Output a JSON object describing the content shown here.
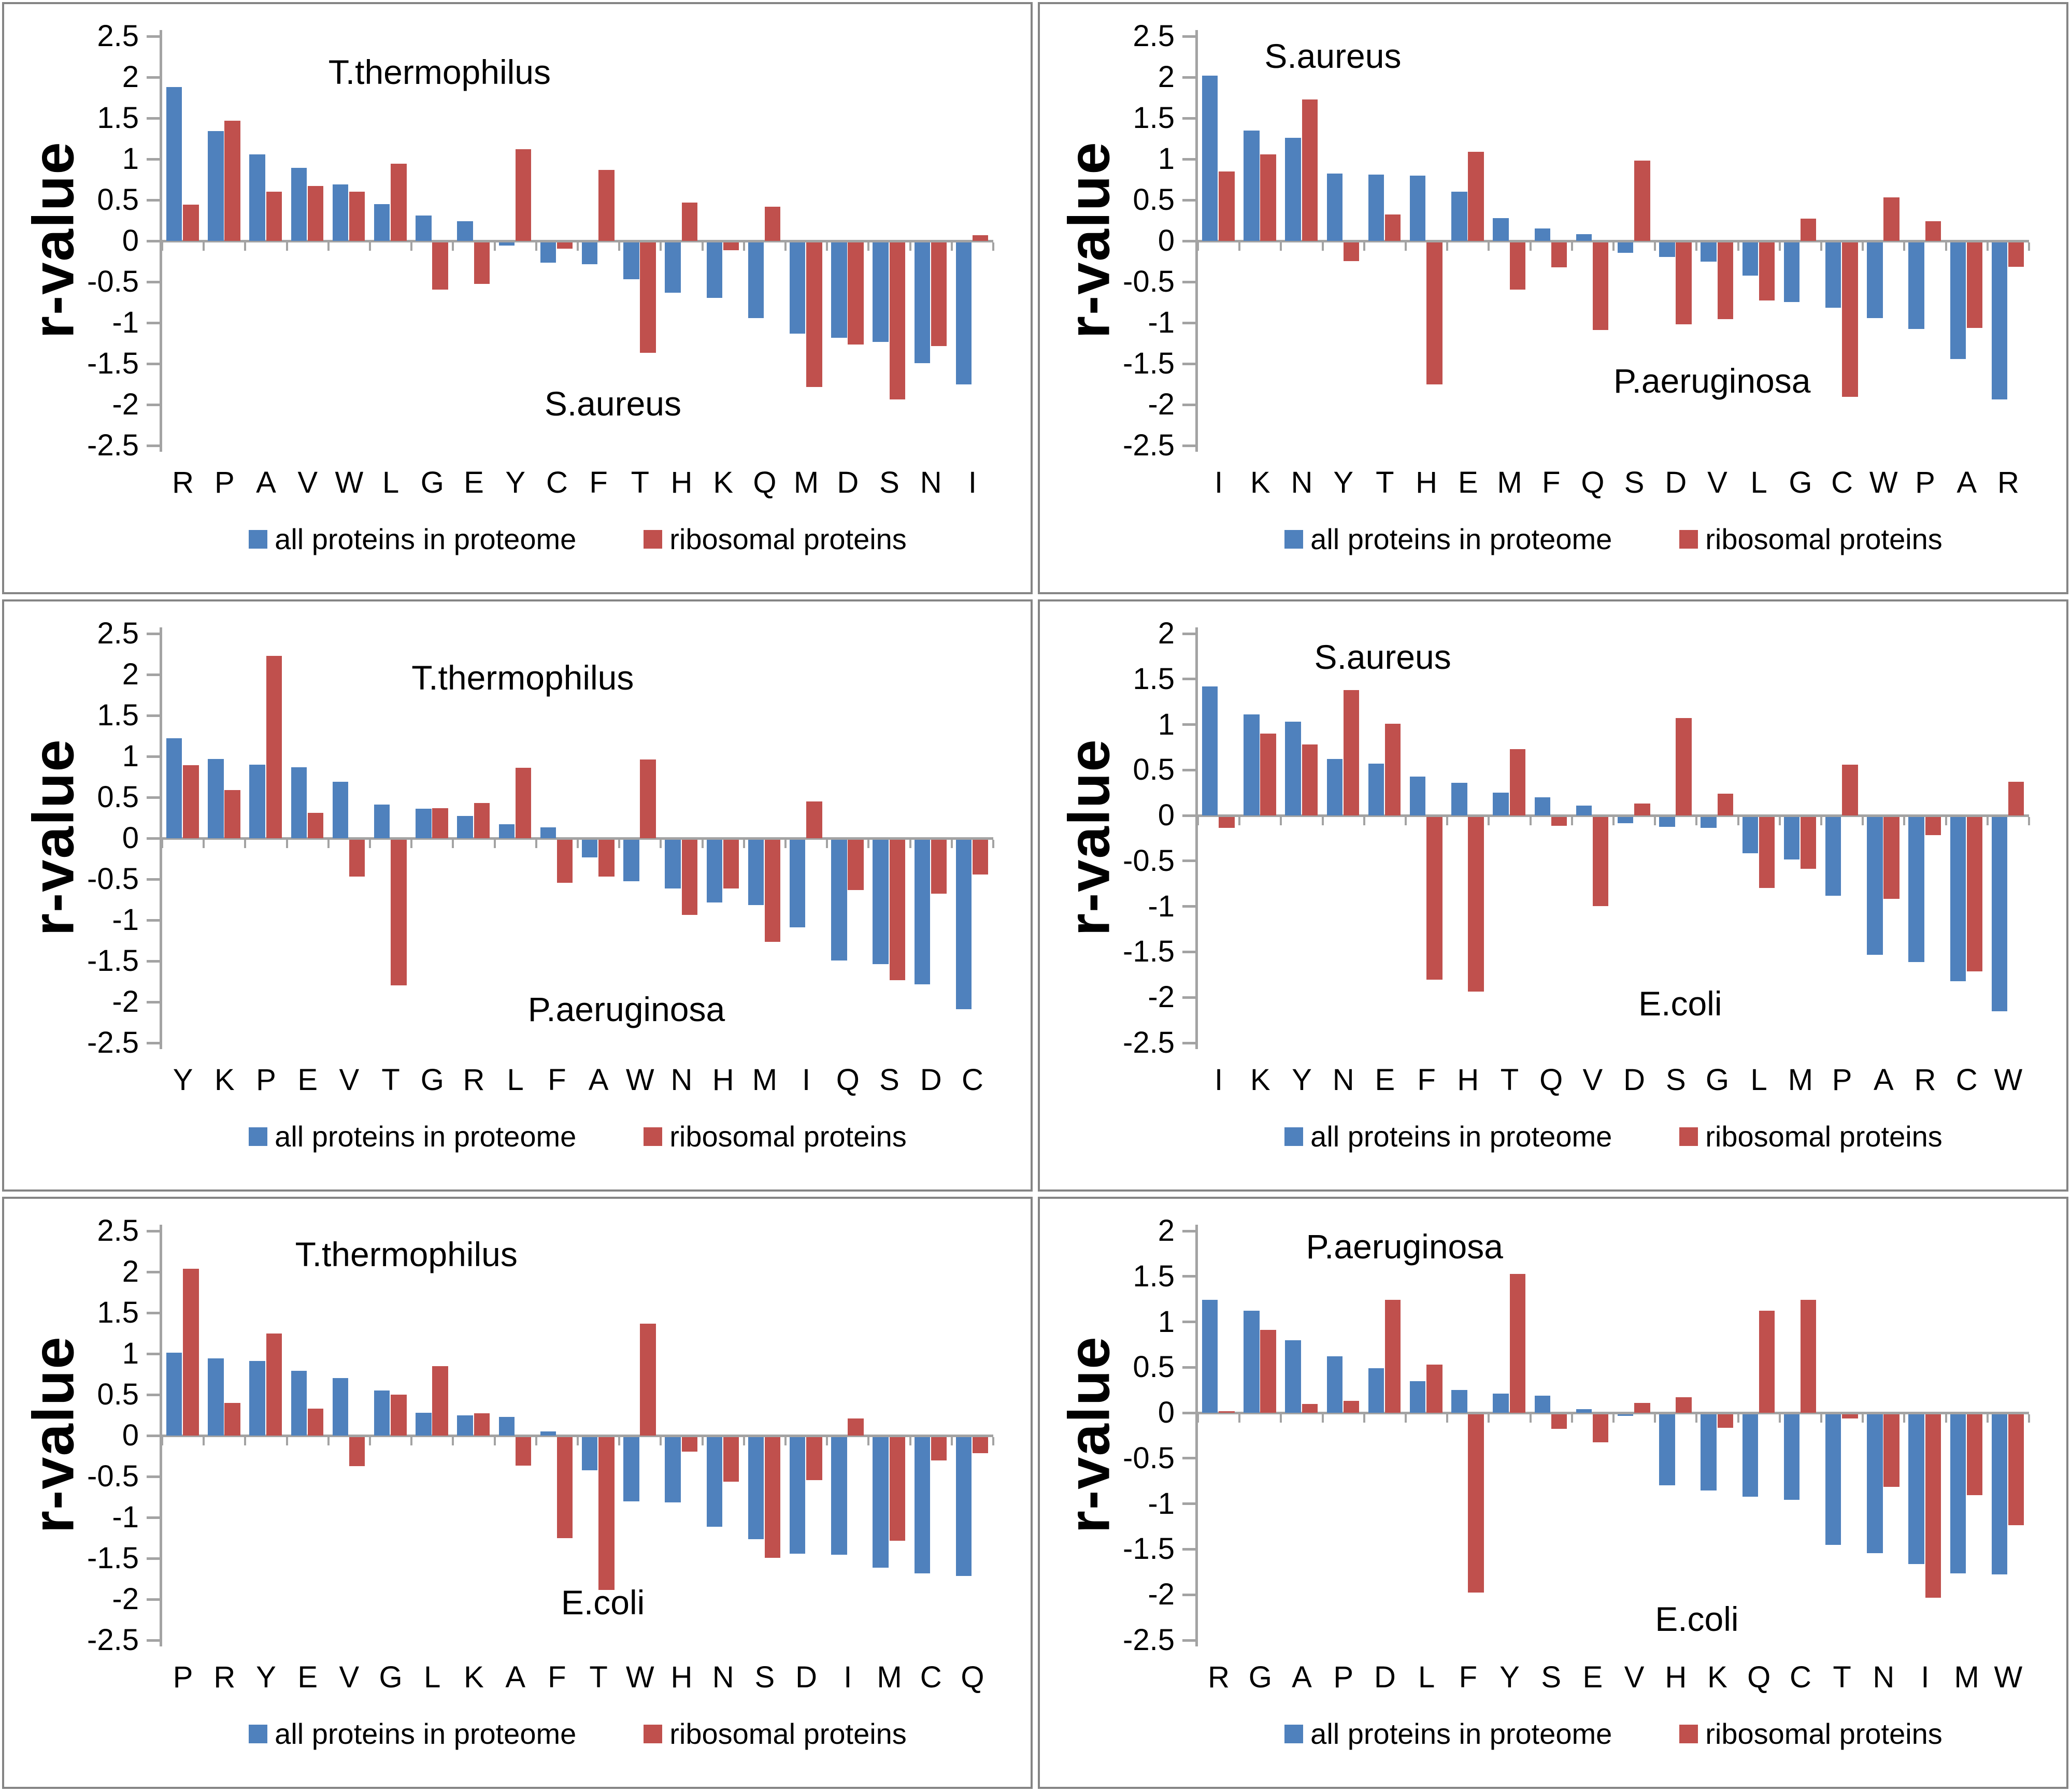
{
  "figure": {
    "ylabel": "r-value",
    "legend": [
      {
        "key": "proteome",
        "label": "all proteins in proteome",
        "color": "#4F81BD"
      },
      {
        "key": "ribosomal",
        "label": "ribosomal proteins",
        "color": "#C0504D"
      }
    ],
    "colors": {
      "blue": "#4F81BD",
      "red": "#C0504D",
      "axis": "#A3A3A3",
      "border": "#858585",
      "text": "#000000"
    }
  },
  "chart_data": [
    {
      "id": "tt-vs-sa",
      "type": "bar",
      "title": "T.thermophilus",
      "bottom_label": "S.aureus",
      "title_pos": {
        "x_pct": 20,
        "y_val": 2.05
      },
      "bottom_label_pos": {
        "x_pct": 46,
        "y_val": -2.0
      },
      "ylabel": "r-value",
      "ylim": [
        -2.5,
        2.5
      ],
      "grid": false,
      "legend_position": "bottom",
      "yticks": [
        "2.5",
        "2",
        "1.5",
        "1",
        "0.5",
        "0",
        "-0.5",
        "-1",
        "-1.5",
        "-2",
        "-2.5"
      ],
      "categories": [
        "R",
        "P",
        "A",
        "V",
        "W",
        "L",
        "G",
        "E",
        "Y",
        "C",
        "F",
        "T",
        "H",
        "K",
        "Q",
        "M",
        "D",
        "S",
        "N",
        "I"
      ],
      "series": [
        {
          "name": "all proteins in proteome",
          "color": "#4F81BD",
          "values": [
            1.88,
            1.34,
            1.06,
            0.89,
            0.69,
            0.45,
            0.31,
            0.24,
            -0.04,
            -0.25,
            -0.27,
            -0.45,
            -0.62,
            -0.68,
            -0.93,
            -1.12,
            -1.17,
            -1.22,
            -1.48,
            -1.74
          ]
        },
        {
          "name": "ribosomal proteins",
          "color": "#C0504D",
          "values": [
            0.44,
            1.47,
            0.6,
            0.67,
            0.6,
            0.94,
            -0.58,
            -0.51,
            1.12,
            -0.08,
            0.87,
            -1.35,
            0.47,
            -0.1,
            0.42,
            -1.77,
            -1.25,
            -1.92,
            -1.27,
            0.07
          ]
        }
      ]
    },
    {
      "id": "sa-vs-pa",
      "type": "bar",
      "title": "S.aureus",
      "bottom_label": "P.aeruginosa",
      "title_pos": {
        "x_pct": 8,
        "y_val": 2.25
      },
      "bottom_label_pos": {
        "x_pct": 50,
        "y_val": -1.72
      },
      "ylabel": "r-value",
      "ylim": [
        -2.5,
        2.5
      ],
      "grid": false,
      "legend_position": "bottom",
      "yticks": [
        "2.5",
        "2",
        "1.5",
        "1",
        "0.5",
        "0",
        "-0.5",
        "-1",
        "-1.5",
        "-2",
        "-2.5"
      ],
      "categories": [
        "I",
        "K",
        "N",
        "Y",
        "T",
        "H",
        "E",
        "M",
        "F",
        "Q",
        "S",
        "D",
        "V",
        "L",
        "G",
        "C",
        "W",
        "P",
        "A",
        "R"
      ],
      "series": [
        {
          "name": "all proteins in proteome",
          "color": "#4F81BD",
          "values": [
            2.02,
            1.35,
            1.26,
            0.82,
            0.81,
            0.8,
            0.6,
            0.28,
            0.15,
            0.08,
            -0.13,
            -0.18,
            -0.24,
            -0.41,
            -0.73,
            -0.8,
            -0.93,
            -1.06,
            -1.43,
            -1.92
          ]
        },
        {
          "name": "ribosomal proteins",
          "color": "#C0504D",
          "values": [
            0.85,
            1.06,
            1.73,
            -0.23,
            0.32,
            -1.74,
            1.09,
            -0.58,
            -0.31,
            -1.07,
            0.98,
            -1.0,
            -0.94,
            -0.71,
            0.27,
            -1.89,
            0.53,
            0.24,
            -1.05,
            -0.3
          ]
        }
      ]
    },
    {
      "id": "tt-vs-pa",
      "type": "bar",
      "title": "T.thermophilus",
      "bottom_label": "P.aeruginosa",
      "title_pos": {
        "x_pct": 30,
        "y_val": 1.95
      },
      "bottom_label_pos": {
        "x_pct": 44,
        "y_val": -2.1
      },
      "ylabel": "r-value",
      "ylim": [
        -2.5,
        2.5
      ],
      "grid": false,
      "legend_position": "bottom",
      "yticks": [
        "2.5",
        "2",
        "1.5",
        "1",
        "0.5",
        "0",
        "-0.5",
        "-1",
        "-1.5",
        "-2",
        "-2.5"
      ],
      "categories": [
        "Y",
        "K",
        "P",
        "E",
        "V",
        "T",
        "G",
        "R",
        "L",
        "F",
        "A",
        "W",
        "N",
        "H",
        "M",
        "I",
        "Q",
        "S",
        "D",
        "C"
      ],
      "series": [
        {
          "name": "all proteins in proteome",
          "color": "#4F81BD",
          "values": [
            1.22,
            0.97,
            0.9,
            0.87,
            0.69,
            0.41,
            0.36,
            0.27,
            0.17,
            0.13,
            -0.22,
            -0.51,
            -0.6,
            -0.77,
            -0.8,
            -1.07,
            -1.48,
            -1.52,
            -1.77,
            -2.07
          ]
        },
        {
          "name": "ribosomal proteins",
          "color": "#C0504D",
          "values": [
            0.89,
            0.59,
            2.23,
            0.31,
            -0.45,
            -1.78,
            0.37,
            0.43,
            0.86,
            -0.53,
            -0.45,
            0.96,
            -0.92,
            -0.6,
            -1.25,
            0.45,
            -0.62,
            -1.72,
            -0.66,
            -0.43
          ]
        }
      ]
    },
    {
      "id": "sa-vs-ec",
      "type": "bar",
      "title": "S.aureus",
      "bottom_label": "E.coli",
      "title_pos": {
        "x_pct": 14,
        "y_val": 1.73
      },
      "bottom_label_pos": {
        "x_pct": 53,
        "y_val": -2.08
      },
      "ylabel": "r-value",
      "ylim": [
        -2.5,
        2
      ],
      "grid": false,
      "legend_position": "bottom",
      "yticks": [
        "2",
        "1.5",
        "1",
        "0.5",
        "0",
        "-0.5",
        "-1",
        "-1.5",
        "-2",
        "-2.5"
      ],
      "categories": [
        "I",
        "K",
        "Y",
        "N",
        "E",
        "F",
        "H",
        "T",
        "Q",
        "V",
        "D",
        "S",
        "G",
        "L",
        "M",
        "P",
        "A",
        "R",
        "C",
        "W"
      ],
      "series": [
        {
          "name": "all proteins in proteome",
          "color": "#4F81BD",
          "values": [
            1.42,
            1.11,
            1.03,
            0.62,
            0.57,
            0.43,
            0.36,
            0.25,
            0.2,
            0.11,
            -0.07,
            -0.11,
            -0.12,
            -0.4,
            -0.47,
            -0.87,
            -1.52,
            -1.6,
            -1.81,
            -2.14
          ]
        },
        {
          "name": "ribosomal proteins",
          "color": "#C0504D",
          "values": [
            -0.12,
            0.9,
            0.78,
            1.38,
            1.01,
            -1.79,
            -1.92,
            0.73,
            -0.1,
            -0.98,
            0.13,
            1.07,
            0.24,
            -0.78,
            -0.57,
            0.56,
            -0.9,
            -0.2,
            -1.7,
            0.37
          ]
        }
      ]
    },
    {
      "id": "tt-vs-ec",
      "type": "bar",
      "title": "T.thermophilus",
      "bottom_label": "E.coli",
      "title_pos": {
        "x_pct": 16,
        "y_val": 2.2
      },
      "bottom_label_pos": {
        "x_pct": 48,
        "y_val": -2.05
      },
      "ylabel": "r-value",
      "ylim": [
        -2.5,
        2.5
      ],
      "grid": false,
      "legend_position": "bottom",
      "yticks": [
        "2.5",
        "2",
        "1.5",
        "1",
        "0.5",
        "0",
        "-0.5",
        "-1",
        "-1.5",
        "-2",
        "-2.5"
      ],
      "categories": [
        "P",
        "R",
        "Y",
        "E",
        "V",
        "G",
        "L",
        "K",
        "A",
        "F",
        "T",
        "W",
        "H",
        "N",
        "S",
        "D",
        "I",
        "M",
        "C",
        "Q"
      ],
      "series": [
        {
          "name": "all proteins in proteome",
          "color": "#4F81BD",
          "values": [
            1.01,
            0.94,
            0.91,
            0.79,
            0.7,
            0.55,
            0.28,
            0.25,
            0.23,
            0.05,
            -0.41,
            -0.79,
            -0.8,
            -1.1,
            -1.25,
            -1.43,
            -1.44,
            -1.6,
            -1.67,
            -1.7
          ]
        },
        {
          "name": "ribosomal proteins",
          "color": "#C0504D",
          "values": [
            2.04,
            0.4,
            1.25,
            0.33,
            -0.36,
            0.5,
            0.85,
            0.27,
            -0.35,
            -1.24,
            -1.87,
            1.37,
            -0.18,
            -0.55,
            -1.48,
            -0.53,
            0.21,
            -1.27,
            -0.29,
            -0.2
          ]
        }
      ]
    },
    {
      "id": "pa-vs-ec",
      "type": "bar",
      "title": "P.aeruginosa",
      "bottom_label": "E.coli",
      "title_pos": {
        "x_pct": 13,
        "y_val": 1.82
      },
      "bottom_label_pos": {
        "x_pct": 55,
        "y_val": -2.28
      },
      "ylabel": "r-value",
      "ylim": [
        -2.5,
        2
      ],
      "grid": false,
      "legend_position": "bottom",
      "yticks": [
        "2",
        "1.5",
        "1",
        "0.5",
        "0",
        "-0.5",
        "-1",
        "-1.5",
        "-2",
        "-2.5"
      ],
      "categories": [
        "R",
        "G",
        "A",
        "P",
        "D",
        "L",
        "F",
        "Y",
        "S",
        "E",
        "V",
        "H",
        "K",
        "Q",
        "C",
        "T",
        "N",
        "I",
        "M",
        "W"
      ],
      "series": [
        {
          "name": "all proteins in proteome",
          "color": "#4F81BD",
          "values": [
            1.24,
            1.12,
            0.8,
            0.62,
            0.49,
            0.35,
            0.25,
            0.21,
            0.19,
            0.04,
            -0.02,
            -0.78,
            -0.84,
            -0.91,
            -0.94,
            -1.44,
            -1.53,
            -1.65,
            -1.75,
            -1.76
          ]
        },
        {
          "name": "ribosomal proteins",
          "color": "#C0504D",
          "values": [
            0.02,
            0.91,
            0.1,
            0.13,
            1.24,
            0.53,
            -1.96,
            1.53,
            -0.16,
            -0.31,
            0.11,
            0.17,
            -0.15,
            1.12,
            1.24,
            -0.05,
            -0.8,
            -2.02,
            -0.89,
            -1.22
          ]
        }
      ]
    }
  ]
}
